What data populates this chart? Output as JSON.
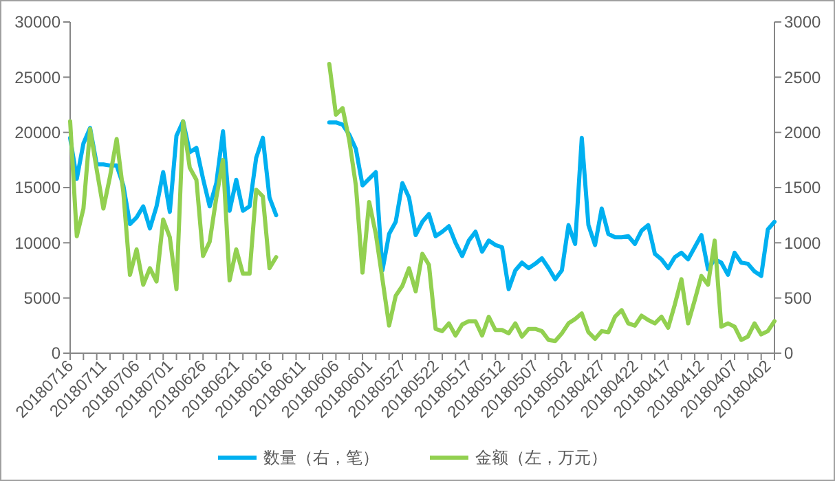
{
  "chart_data": {
    "type": "line",
    "categories": [
      "20180716",
      null,
      null,
      null,
      null,
      "20180711",
      null,
      null,
      null,
      null,
      "20180706",
      null,
      null,
      null,
      null,
      "20180701",
      null,
      null,
      null,
      null,
      "20180626",
      null,
      null,
      null,
      null,
      "20180621",
      null,
      null,
      null,
      null,
      "20180616",
      null,
      null,
      null,
      null,
      "20180611",
      null,
      null,
      null,
      null,
      "20180606",
      null,
      null,
      null,
      null,
      "20180601",
      null,
      null,
      null,
      null,
      "20180527",
      null,
      null,
      null,
      null,
      "20180522",
      null,
      null,
      null,
      null,
      "20180517",
      null,
      null,
      null,
      null,
      "20180512",
      null,
      null,
      null,
      null,
      "20180507",
      null,
      null,
      null,
      null,
      "20180502",
      null,
      null,
      null,
      null,
      "20180427",
      null,
      null,
      null,
      null,
      "20180422",
      null,
      null,
      null,
      null,
      "20180417",
      null,
      null,
      null,
      null,
      "20180412",
      null,
      null,
      null,
      null,
      "20180407",
      null,
      null,
      null,
      null,
      "20180402",
      null
    ],
    "series": [
      {
        "name": "数量（右，笔）",
        "color": "#00b0f0",
        "axis": "y2",
        "values": [
          1950,
          1580,
          1900,
          2040,
          1710,
          1710,
          1700,
          1700,
          1520,
          1170,
          1230,
          1330,
          1130,
          1330,
          1640,
          1280,
          1970,
          2100,
          1820,
          1860,
          1580,
          1330,
          1540,
          2010,
          1290,
          1570,
          1290,
          1330,
          1770,
          1950,
          1410,
          1250,
          null,
          null,
          null,
          null,
          null,
          null,
          null,
          2090,
          2090,
          2070,
          1980,
          1850,
          1520,
          1580,
          1640,
          750,
          1080,
          1190,
          1540,
          1410,
          1070,
          1190,
          1260,
          1060,
          1100,
          1150,
          1000,
          880,
          1020,
          1100,
          920,
          1020,
          980,
          960,
          580,
          750,
          820,
          770,
          810,
          860,
          770,
          670,
          750,
          1160,
          990,
          1950,
          1160,
          980,
          1310,
          1080,
          1050,
          1050,
          1060,
          990,
          1110,
          1160,
          900,
          850,
          770,
          870,
          910,
          850,
          960,
          1070,
          760,
          850,
          820,
          710,
          910,
          820,
          810,
          740,
          700,
          1120,
          1190
        ]
      },
      {
        "name": "金额（左，万元）",
        "color": "#92d050",
        "values": [
          21000,
          10600,
          13100,
          20300,
          16600,
          13100,
          16000,
          19400,
          14600,
          7100,
          9400,
          6200,
          7700,
          6500,
          12100,
          10500,
          5800,
          21000,
          16800,
          15700,
          8800,
          10100,
          14100,
          17500,
          6600,
          9400,
          7200,
          7200,
          14800,
          14200,
          7700,
          8700,
          null,
          null,
          null,
          null,
          null,
          null,
          null,
          26200,
          21600,
          22200,
          19300,
          15200,
          7300,
          13700,
          10800,
          6700,
          2500,
          5200,
          6100,
          7700,
          5600,
          9000,
          8000,
          2200,
          2000,
          2700,
          1600,
          2600,
          2900,
          2900,
          1600,
          3300,
          2100,
          2100,
          1800,
          2700,
          1500,
          2200,
          2200,
          2000,
          1200,
          1100,
          1800,
          2700,
          3100,
          3600,
          1900,
          1300,
          2000,
          1900,
          3300,
          3900,
          2700,
          2500,
          3400,
          3000,
          2700,
          3300,
          2300,
          4400,
          6700,
          2700,
          4800,
          7000,
          6200,
          10200,
          2400,
          2700,
          2400,
          1200,
          1500,
          2700,
          1700,
          2000,
          2900
        ]
      }
    ],
    "ylim": [
      0,
      30000
    ],
    "yticks": [
      0,
      5000,
      10000,
      15000,
      20000,
      25000,
      30000
    ],
    "y2lim": [
      0,
      3000
    ],
    "y2ticks": [
      0,
      500,
      1000,
      1500,
      2000,
      2500,
      3000
    ],
    "grid": false,
    "legend": "bottom",
    "marker": "none",
    "line_style": "solid"
  }
}
